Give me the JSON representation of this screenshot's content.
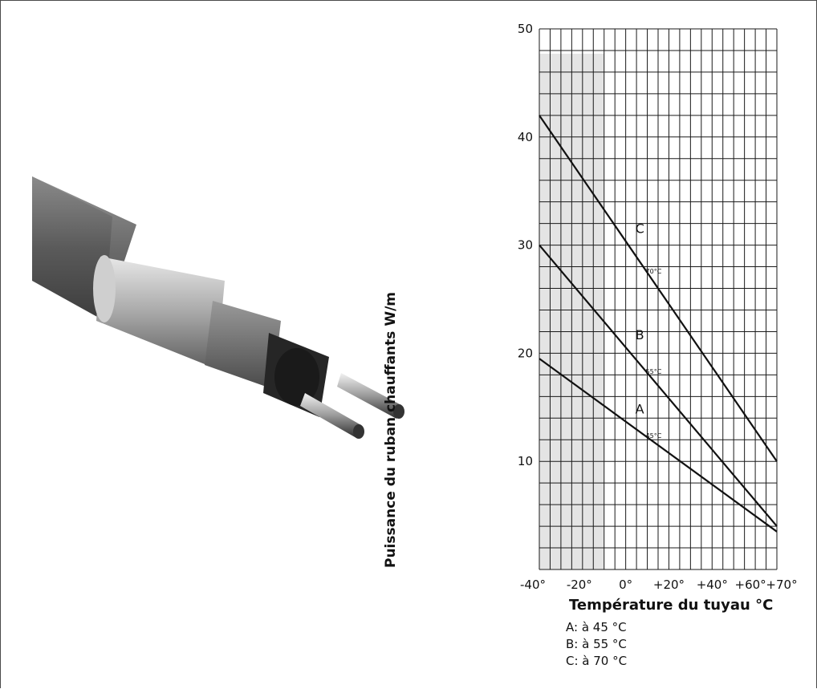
{
  "chart_data": {
    "type": "line",
    "title": "",
    "xlabel": "Température du tuyau °C",
    "ylabel": "Puissance du ruban chauffants W/m",
    "xlim": [
      -40,
      70
    ],
    "ylim": [
      0,
      50
    ],
    "x_ticks": [
      "-40°",
      "-20°",
      "0°",
      "+20°",
      "+40°",
      "+60°",
      "+70°"
    ],
    "y_ticks": [
      "10",
      "20",
      "30",
      "40",
      "50"
    ],
    "grid": true,
    "shaded_region_x": [
      -40,
      -10
    ],
    "series": [
      {
        "name": "A",
        "x": [
          -40,
          70
        ],
        "y": [
          19.5,
          3.5
        ],
        "point_label": "45°C",
        "point_label_x": 10
      },
      {
        "name": "B",
        "x": [
          -40,
          70
        ],
        "y": [
          30,
          4
        ],
        "point_label": "55°C",
        "point_label_x": 10
      },
      {
        "name": "C",
        "x": [
          -40,
          70
        ],
        "y": [
          42,
          10
        ],
        "point_label": "70°C",
        "point_label_x": 10
      }
    ],
    "legend": [
      "A: à 45 °C",
      "B: à 55 °C",
      "C: à 70 °C"
    ]
  },
  "colors": {
    "line": "#111111",
    "grid": "#1a1a1a",
    "shade": "#e4e4e4",
    "cable_jacket": "#5a5a5a",
    "braid": "#c8c8c8",
    "inner": "#2a2a2a"
  },
  "icons": {
    "photo": "heating-cable-photo"
  }
}
